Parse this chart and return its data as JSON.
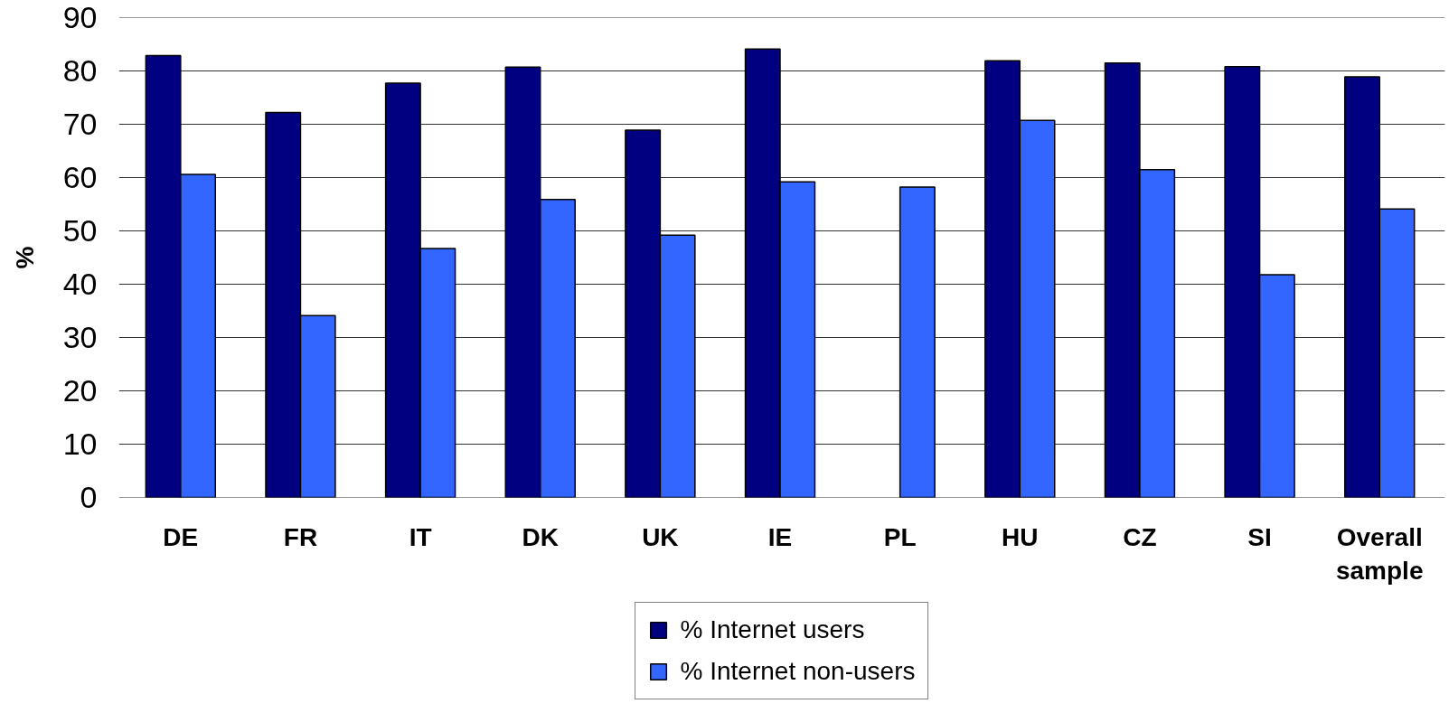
{
  "chart_data": {
    "type": "bar",
    "ylabel": "%",
    "categories": [
      "DE",
      "FR",
      "IT",
      "DK",
      "UK",
      "IE",
      "PL",
      "HU",
      "CZ",
      "SI",
      "Overall sample"
    ],
    "series": [
      {
        "name": "% Internet users",
        "color": "#000080",
        "values": [
          82.9,
          72.2,
          77.7,
          80.7,
          68.9,
          84.1,
          null,
          81.9,
          81.5,
          80.8,
          78.9
        ]
      },
      {
        "name": "% Internet non-users",
        "color": "#3366ff",
        "values": [
          60.6,
          34.1,
          46.7,
          55.9,
          49.2,
          59.2,
          58.2,
          70.7,
          61.5,
          41.8,
          54.1
        ]
      }
    ],
    "ylim": [
      0,
      90
    ],
    "yticks": [
      0,
      10,
      20,
      30,
      40,
      50,
      60,
      70,
      80,
      90
    ],
    "grid": "y",
    "legend": "bottom"
  }
}
